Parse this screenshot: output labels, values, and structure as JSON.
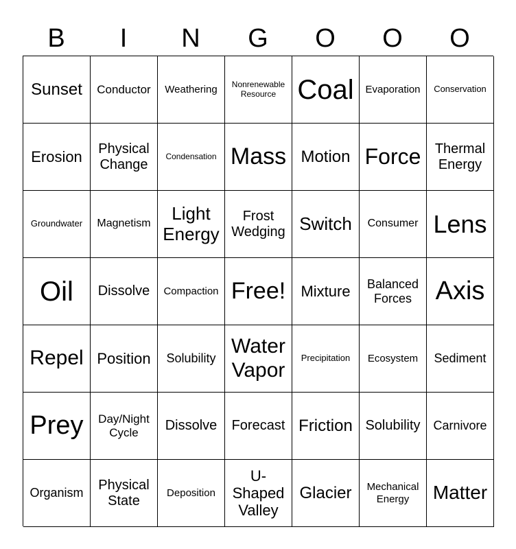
{
  "header": [
    "B",
    "I",
    "N",
    "G",
    "O",
    "O",
    "O"
  ],
  "cells": [
    [
      "Sunset",
      "Conductor",
      "Weathering",
      "Nonrenewable Resource",
      "Coal",
      "Evaporation",
      "Conservation"
    ],
    [
      "Erosion",
      "Physical Change",
      "Condensation",
      "Mass",
      "Motion",
      "Force",
      "Thermal Energy"
    ],
    [
      "Groundwater",
      "Magnetism",
      "Light Energy",
      "Frost Wedging",
      "Switch",
      "Consumer",
      "Lens"
    ],
    [
      "Oil",
      "Dissolve",
      "Compaction",
      "Free!",
      "Mixture",
      "Balanced Forces",
      "Axis"
    ],
    [
      "Repel",
      "Position",
      "Solubility",
      "Water Vapor",
      "Precipitation",
      "Ecosystem",
      "Sediment"
    ],
    [
      "Prey",
      "Day/Night Cycle",
      "Dissolve",
      "Forecast",
      "Friction",
      "Solubility",
      "Carnivore"
    ],
    [
      "Organism",
      "Physical State",
      "Deposition",
      "U-Shaped Valley",
      "Glacier",
      "Mechanical Energy",
      "Matter"
    ]
  ]
}
